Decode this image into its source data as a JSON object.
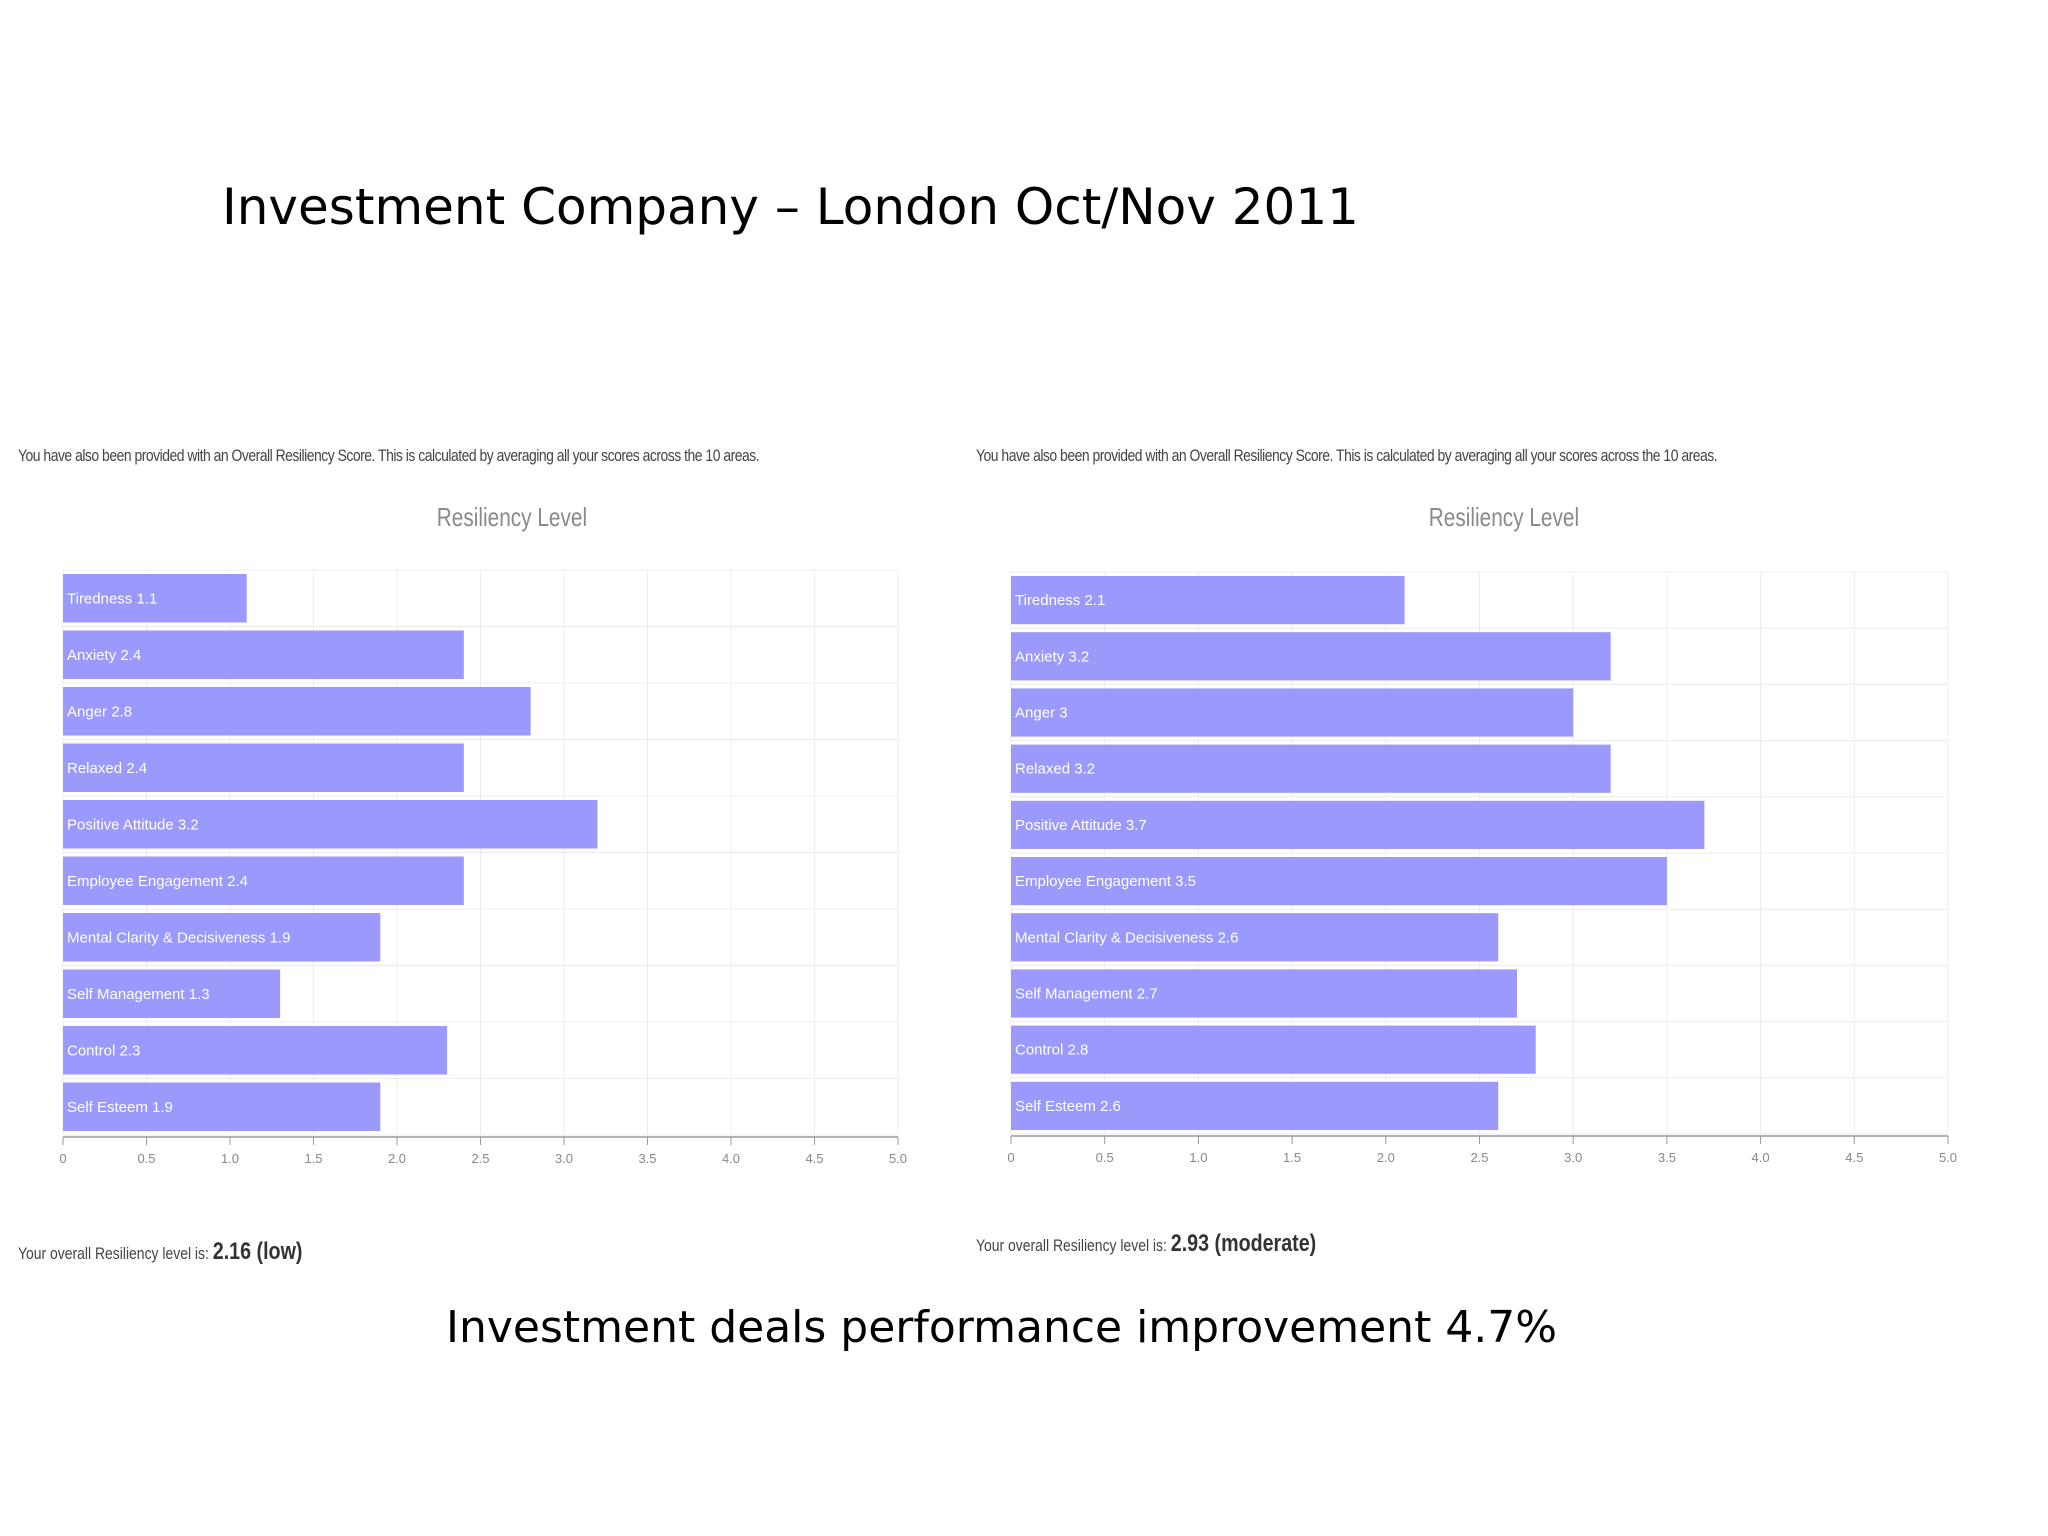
{
  "slide": {
    "title": "Investment Company – London Oct/Nov 2011",
    "footer": "Investment deals performance improvement 4.7%"
  },
  "colors": {
    "bar": "#9b99fb",
    "grid": "#ececec",
    "axis": "#999999",
    "chart_title": "#8a8a8a"
  },
  "chart_data": [
    {
      "type": "bar",
      "orientation": "horizontal",
      "intro": "You have also been provided with an Overall Resiliency Score. This is calculated by averaging all your scores across the 10 areas.",
      "title": "Resiliency Level",
      "categories": [
        "Tiredness",
        "Anxiety",
        "Anger",
        "Relaxed",
        "Positive Attitude",
        "Employee Engagement",
        "Mental Clarity & Decisiveness",
        "Self Management",
        "Control",
        "Self Esteem"
      ],
      "values": [
        1.1,
        2.4,
        2.8,
        2.4,
        3.2,
        2.4,
        1.9,
        1.3,
        2.3,
        1.9
      ],
      "bar_labels": [
        "Tiredness 1.1",
        "Anxiety 2.4",
        "Anger 2.8",
        "Relaxed 2.4",
        "Positive Attitude 3.2",
        "Employee Engagement 2.4",
        "Mental Clarity & Decisiveness 1.9",
        "Self Management 1.3",
        "Control 2.3",
        "Self Esteem 1.9"
      ],
      "xlim": [
        0,
        5
      ],
      "ticks": [
        "0",
        "0.5",
        "1.0",
        "1.5",
        "2.0",
        "2.5",
        "3.0",
        "3.5",
        "4.0",
        "4.5",
        "5.0"
      ],
      "grid": true,
      "overall_prefix": "Your overall Resiliency level is:",
      "overall_score": "2.16 (low)"
    },
    {
      "type": "bar",
      "orientation": "horizontal",
      "intro": "You have also been provided with an Overall Resiliency Score. This is calculated by averaging all your scores across the 10 areas.",
      "title": "Resiliency Level",
      "categories": [
        "Tiredness",
        "Anxiety",
        "Anger",
        "Relaxed",
        "Positive Attitude",
        "Employee Engagement",
        "Mental Clarity & Decisiveness",
        "Self Management",
        "Control",
        "Self Esteem"
      ],
      "values": [
        2.1,
        3.2,
        3.0,
        3.2,
        3.7,
        3.5,
        2.6,
        2.7,
        2.8,
        2.6
      ],
      "bar_labels": [
        "Tiredness 2.1",
        "Anxiety 3.2",
        "Anger 3",
        "Relaxed 3.2",
        "Positive Attitude 3.7",
        "Employee Engagement 3.5",
        "Mental Clarity & Decisiveness 2.6",
        "Self Management 2.7",
        "Control 2.8",
        "Self Esteem 2.6"
      ],
      "xlim": [
        0,
        5
      ],
      "ticks": [
        "0",
        "0.5",
        "1.0",
        "1.5",
        "2.0",
        "2.5",
        "3.0",
        "3.5",
        "4.0",
        "4.5",
        "5.0"
      ],
      "grid": true,
      "overall_prefix": "Your overall Resiliency level is:",
      "overall_score": "2.93 (moderate)"
    }
  ]
}
